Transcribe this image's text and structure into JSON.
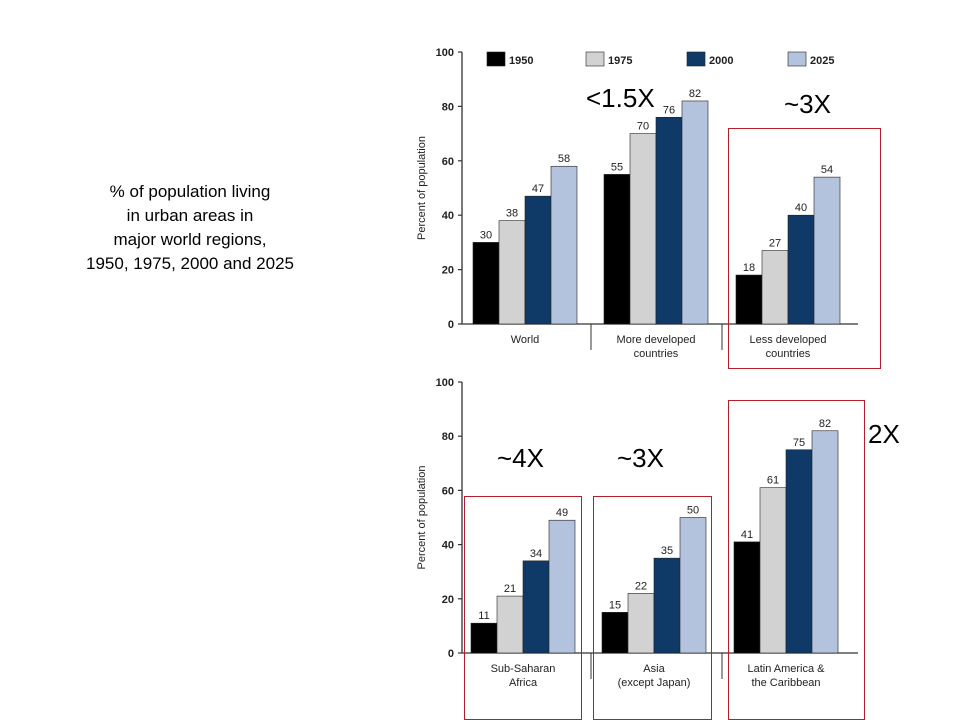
{
  "caption": {
    "lines": [
      "% of population living",
      "in urban areas in",
      "major world regions,",
      "1950, 1975, 2000 and 2025"
    ]
  },
  "colors": {
    "1950": "#000000",
    "1975": "#d2d2d2",
    "2000": "#0f3a68",
    "2025": "#b4c3dd",
    "highlight_box": "#b3202a"
  },
  "chart_data": [
    {
      "type": "bar",
      "title": "",
      "ylabel": "Percent of population",
      "ylim": [
        0,
        100
      ],
      "yticks": [
        "0",
        "20",
        "40",
        "60",
        "80",
        "100"
      ],
      "legend": [
        "1950",
        "1975",
        "2000",
        "2025"
      ],
      "legend_position": "top",
      "categories": [
        [
          "World"
        ],
        [
          "More developed",
          "countries"
        ],
        [
          "Less developed",
          "countries"
        ]
      ],
      "series": [
        {
          "name": "1950",
          "values": [
            30,
            55,
            18
          ]
        },
        {
          "name": "1975",
          "values": [
            38,
            70,
            27
          ]
        },
        {
          "name": "2000",
          "values": [
            47,
            76,
            40
          ]
        },
        {
          "name": "2025",
          "values": [
            58,
            82,
            54
          ]
        }
      ]
    },
    {
      "type": "bar",
      "title": "",
      "ylabel": "Percent of population",
      "ylim": [
        0,
        100
      ],
      "yticks": [
        "0",
        "20",
        "40",
        "60",
        "80",
        "100"
      ],
      "categories": [
        [
          "Sub-Saharan",
          "Africa"
        ],
        [
          "Asia",
          "(except Japan)"
        ],
        [
          "Latin America &",
          "the Caribbean"
        ]
      ],
      "series": [
        {
          "name": "1950",
          "values": [
            11,
            15,
            41
          ]
        },
        {
          "name": "1975",
          "values": [
            21,
            22,
            61
          ]
        },
        {
          "name": "2000",
          "values": [
            34,
            35,
            75
          ]
        },
        {
          "name": "2025",
          "values": [
            49,
            50,
            82
          ]
        }
      ]
    }
  ],
  "annotations": [
    {
      "text": "<1.5X",
      "highlight": false
    },
    {
      "text": "~3X",
      "highlight": true
    },
    {
      "text": "~4X",
      "highlight": true
    },
    {
      "text": "~3X",
      "highlight": true
    },
    {
      "text": "2X",
      "highlight": true
    }
  ]
}
